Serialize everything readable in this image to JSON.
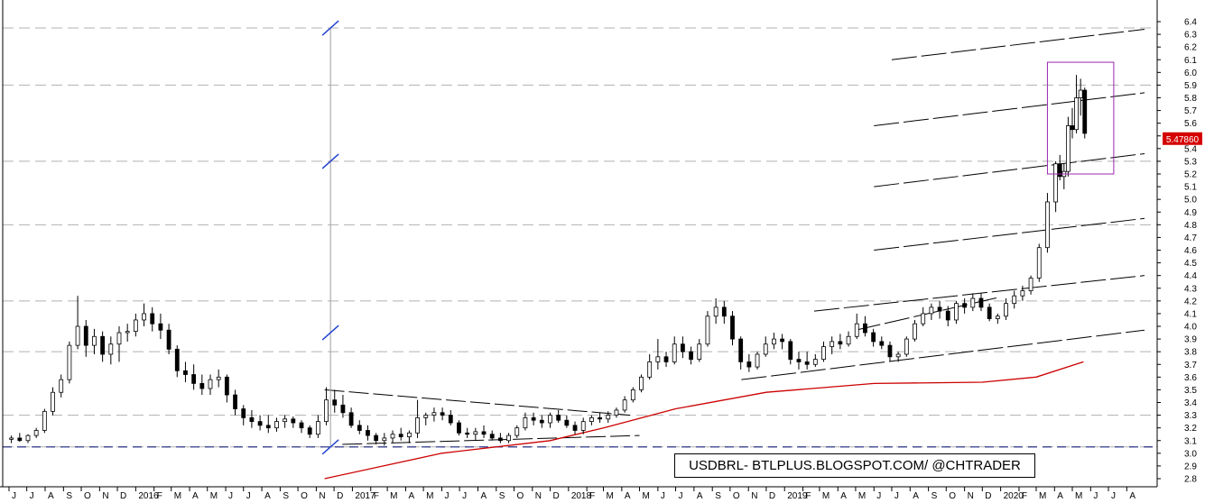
{
  "chart_data": {
    "type": "candlestick",
    "symbol": "USDBRL",
    "watermark": "USDBRL- BTLPLUS.BLOGSPOT.COM/ @CHTRADER",
    "last_price_label": "5.47860",
    "ylim": [
      2.8,
      6.4
    ],
    "y_ticks": [
      "2.8",
      "2.9",
      "3.0",
      "3.1",
      "3.2",
      "3.3",
      "3.4",
      "3.5",
      "3.6",
      "3.7",
      "3.8",
      "3.9",
      "4.0",
      "4.1",
      "4.2",
      "4.3",
      "4.4",
      "4.5",
      "4.6",
      "4.7",
      "4.8",
      "4.9",
      "5.0",
      "5.1",
      "5.2",
      "5.3",
      "5.4",
      "5.5",
      "5.6",
      "5.7",
      "5.8",
      "5.9",
      "6.0",
      "6.1",
      "6.2",
      "6.3",
      "6.4"
    ],
    "x_ticks": [
      "J",
      "J",
      "A",
      "S",
      "O",
      "N",
      "D",
      "2016",
      "F",
      "M",
      "A",
      "M",
      "J",
      "J",
      "A",
      "S",
      "O",
      "N",
      "D",
      "2017",
      "F",
      "M",
      "A",
      "M",
      "J",
      "J",
      "A",
      "S",
      "O",
      "N",
      "D",
      "2018",
      "F",
      "M",
      "A",
      "M",
      "J",
      "J",
      "A",
      "S",
      "O",
      "N",
      "D",
      "2019",
      "F",
      "M",
      "A",
      "M",
      "J",
      "J",
      "A",
      "S",
      "O",
      "N",
      "D",
      "2020",
      "F",
      "M",
      "A",
      "M",
      "J",
      "J",
      "A"
    ],
    "x_range": [
      "2015-06",
      "2020-08"
    ],
    "grid": "dashed horizontal",
    "horizontal_levels": [
      3.05,
      3.3,
      3.8,
      4.2,
      4.8,
      5.3,
      5.9,
      6.35
    ],
    "moving_average": {
      "color": "#cc0000",
      "points": [
        [
          "2016-11-15",
          2.8
        ],
        [
          "2017-06-01",
          3.0
        ],
        [
          "2017-12-01",
          3.1
        ],
        [
          "2018-03-01",
          3.2
        ],
        [
          "2018-07-01",
          3.35
        ],
        [
          "2018-12-01",
          3.48
        ],
        [
          "2019-06-01",
          3.55
        ],
        [
          "2019-12-01",
          3.56
        ],
        [
          "2020-03-01",
          3.6
        ],
        [
          "2020-05-20",
          3.72
        ]
      ]
    },
    "candles": [
      [
        "2015-06-05",
        3.11,
        3.14,
        3.08,
        3.12
      ],
      [
        "2015-06-19",
        3.12,
        3.16,
        3.09,
        3.1
      ],
      [
        "2015-07-03",
        3.1,
        3.15,
        3.08,
        3.14
      ],
      [
        "2015-07-17",
        3.14,
        3.2,
        3.12,
        3.18
      ],
      [
        "2015-07-31",
        3.18,
        3.35,
        3.16,
        3.33
      ],
      [
        "2015-08-14",
        3.33,
        3.52,
        3.3,
        3.48
      ],
      [
        "2015-08-28",
        3.48,
        3.62,
        3.44,
        3.58
      ],
      [
        "2015-09-11",
        3.58,
        3.88,
        3.55,
        3.85
      ],
      [
        "2015-09-25",
        3.85,
        4.24,
        3.82,
        4.0
      ],
      [
        "2015-10-09",
        4.0,
        4.05,
        3.76,
        3.85
      ],
      [
        "2015-10-23",
        3.85,
        3.98,
        3.78,
        3.92
      ],
      [
        "2015-11-06",
        3.92,
        3.96,
        3.72,
        3.78
      ],
      [
        "2015-11-20",
        3.78,
        3.92,
        3.7,
        3.86
      ],
      [
        "2015-12-04",
        3.86,
        4.0,
        3.72,
        3.95
      ],
      [
        "2015-12-18",
        3.95,
        4.02,
        3.88,
        3.96
      ],
      [
        "2016-01-01",
        3.96,
        4.1,
        3.92,
        4.05
      ],
      [
        "2016-01-15",
        4.05,
        4.18,
        4.0,
        4.1
      ],
      [
        "2016-01-29",
        4.1,
        4.15,
        3.96,
        4.02
      ],
      [
        "2016-02-12",
        4.02,
        4.1,
        3.9,
        3.97
      ],
      [
        "2016-02-26",
        3.97,
        4.02,
        3.78,
        3.82
      ],
      [
        "2016-03-11",
        3.82,
        3.85,
        3.6,
        3.65
      ],
      [
        "2016-03-25",
        3.65,
        3.72,
        3.56,
        3.62
      ],
      [
        "2016-04-08",
        3.62,
        3.7,
        3.5,
        3.55
      ],
      [
        "2016-04-22",
        3.55,
        3.62,
        3.46,
        3.51
      ],
      [
        "2016-05-06",
        3.51,
        3.62,
        3.46,
        3.58
      ],
      [
        "2016-05-20",
        3.58,
        3.66,
        3.52,
        3.6
      ],
      [
        "2016-06-03",
        3.6,
        3.62,
        3.4,
        3.46
      ],
      [
        "2016-06-17",
        3.46,
        3.5,
        3.3,
        3.35
      ],
      [
        "2016-07-01",
        3.35,
        3.38,
        3.22,
        3.28
      ],
      [
        "2016-07-15",
        3.28,
        3.34,
        3.2,
        3.25
      ],
      [
        "2016-07-29",
        3.25,
        3.3,
        3.18,
        3.22
      ],
      [
        "2016-08-12",
        3.22,
        3.3,
        3.16,
        3.2
      ],
      [
        "2016-08-26",
        3.2,
        3.28,
        3.17,
        3.25
      ],
      [
        "2016-09-09",
        3.25,
        3.3,
        3.2,
        3.27
      ],
      [
        "2016-09-23",
        3.27,
        3.29,
        3.2,
        3.24
      ],
      [
        "2016-10-07",
        3.24,
        3.26,
        3.16,
        3.2
      ],
      [
        "2016-10-21",
        3.2,
        3.22,
        3.12,
        3.15
      ],
      [
        "2016-11-04",
        3.15,
        3.3,
        3.12,
        3.25
      ],
      [
        "2016-11-18",
        3.25,
        3.52,
        3.22,
        3.42
      ],
      [
        "2016-12-02",
        3.42,
        3.5,
        3.32,
        3.38
      ],
      [
        "2016-12-16",
        3.38,
        3.46,
        3.28,
        3.32
      ],
      [
        "2016-12-30",
        3.32,
        3.36,
        3.2,
        3.22
      ],
      [
        "2017-01-13",
        3.22,
        3.26,
        3.15,
        3.18
      ],
      [
        "2017-01-27",
        3.18,
        3.22,
        3.1,
        3.14
      ],
      [
        "2017-02-10",
        3.14,
        3.16,
        3.07,
        3.1
      ],
      [
        "2017-02-24",
        3.1,
        3.16,
        3.06,
        3.12
      ],
      [
        "2017-03-10",
        3.12,
        3.18,
        3.08,
        3.15
      ],
      [
        "2017-03-24",
        3.15,
        3.2,
        3.1,
        3.13
      ],
      [
        "2017-04-07",
        3.13,
        3.18,
        3.08,
        3.16
      ],
      [
        "2017-04-21",
        3.16,
        3.42,
        3.12,
        3.28
      ],
      [
        "2017-05-05",
        3.28,
        3.32,
        3.22,
        3.3
      ],
      [
        "2017-05-19",
        3.3,
        3.36,
        3.25,
        3.32
      ],
      [
        "2017-06-02",
        3.32,
        3.36,
        3.26,
        3.3
      ],
      [
        "2017-06-16",
        3.3,
        3.34,
        3.22,
        3.24
      ],
      [
        "2017-06-30",
        3.24,
        3.26,
        3.14,
        3.16
      ],
      [
        "2017-07-14",
        3.16,
        3.2,
        3.12,
        3.15
      ],
      [
        "2017-07-28",
        3.15,
        3.2,
        3.1,
        3.17
      ],
      [
        "2017-08-11",
        3.17,
        3.22,
        3.12,
        3.15
      ],
      [
        "2017-08-25",
        3.15,
        3.18,
        3.1,
        3.12
      ],
      [
        "2017-09-08",
        3.12,
        3.16,
        3.08,
        3.1
      ],
      [
        "2017-09-22",
        3.1,
        3.16,
        3.08,
        3.14
      ],
      [
        "2017-10-06",
        3.14,
        3.22,
        3.12,
        3.2
      ],
      [
        "2017-10-20",
        3.2,
        3.32,
        3.18,
        3.28
      ],
      [
        "2017-11-03",
        3.28,
        3.32,
        3.22,
        3.26
      ],
      [
        "2017-11-17",
        3.26,
        3.3,
        3.2,
        3.24
      ],
      [
        "2017-12-01",
        3.24,
        3.32,
        3.2,
        3.3
      ],
      [
        "2017-12-15",
        3.3,
        3.34,
        3.24,
        3.26
      ],
      [
        "2017-12-29",
        3.26,
        3.3,
        3.2,
        3.22
      ],
      [
        "2018-01-12",
        3.22,
        3.25,
        3.15,
        3.18
      ],
      [
        "2018-01-26",
        3.18,
        3.28,
        3.15,
        3.25
      ],
      [
        "2018-02-09",
        3.25,
        3.3,
        3.22,
        3.28
      ],
      [
        "2018-02-23",
        3.28,
        3.32,
        3.24,
        3.27
      ],
      [
        "2018-03-09",
        3.27,
        3.33,
        3.24,
        3.3
      ],
      [
        "2018-03-23",
        3.3,
        3.36,
        3.28,
        3.34
      ],
      [
        "2018-04-06",
        3.34,
        3.45,
        3.32,
        3.42
      ],
      [
        "2018-04-20",
        3.42,
        3.52,
        3.4,
        3.5
      ],
      [
        "2018-05-04",
        3.5,
        3.62,
        3.48,
        3.6
      ],
      [
        "2018-05-18",
        3.6,
        3.78,
        3.58,
        3.72
      ],
      [
        "2018-06-01",
        3.72,
        3.9,
        3.66,
        3.76
      ],
      [
        "2018-06-15",
        3.76,
        3.8,
        3.68,
        3.72
      ],
      [
        "2018-06-29",
        3.72,
        3.92,
        3.7,
        3.86
      ],
      [
        "2018-07-13",
        3.86,
        3.92,
        3.75,
        3.8
      ],
      [
        "2018-07-27",
        3.8,
        3.84,
        3.7,
        3.74
      ],
      [
        "2018-08-10",
        3.74,
        3.9,
        3.72,
        3.86
      ],
      [
        "2018-08-24",
        3.86,
        4.12,
        3.84,
        4.08
      ],
      [
        "2018-09-07",
        4.08,
        4.22,
        4.02,
        4.15
      ],
      [
        "2018-09-21",
        4.15,
        4.2,
        4.02,
        4.08
      ],
      [
        "2018-10-05",
        4.08,
        4.12,
        3.85,
        3.9
      ],
      [
        "2018-10-19",
        3.9,
        3.92,
        3.66,
        3.72
      ],
      [
        "2018-11-02",
        3.72,
        3.78,
        3.64,
        3.68
      ],
      [
        "2018-11-16",
        3.68,
        3.8,
        3.66,
        3.78
      ],
      [
        "2018-11-30",
        3.78,
        3.92,
        3.76,
        3.86
      ],
      [
        "2018-12-14",
        3.86,
        3.95,
        3.82,
        3.9
      ],
      [
        "2018-12-28",
        3.9,
        3.94,
        3.82,
        3.88
      ],
      [
        "2019-01-11",
        3.88,
        3.9,
        3.7,
        3.74
      ],
      [
        "2019-01-25",
        3.74,
        3.8,
        3.66,
        3.72
      ],
      [
        "2019-02-08",
        3.72,
        3.8,
        3.66,
        3.7
      ],
      [
        "2019-02-22",
        3.7,
        3.78,
        3.68,
        3.74
      ],
      [
        "2019-03-08",
        3.74,
        3.88,
        3.72,
        3.84
      ],
      [
        "2019-03-22",
        3.84,
        3.92,
        3.78,
        3.88
      ],
      [
        "2019-04-05",
        3.88,
        3.94,
        3.82,
        3.86
      ],
      [
        "2019-04-19",
        3.86,
        3.96,
        3.84,
        3.92
      ],
      [
        "2019-05-03",
        3.92,
        4.1,
        3.9,
        4.02
      ],
      [
        "2019-05-17",
        4.02,
        4.08,
        3.92,
        3.95
      ],
      [
        "2019-05-31",
        3.95,
        3.98,
        3.84,
        3.88
      ],
      [
        "2019-06-14",
        3.88,
        3.92,
        3.82,
        3.85
      ],
      [
        "2019-06-28",
        3.85,
        3.88,
        3.72,
        3.76
      ],
      [
        "2019-07-12",
        3.76,
        3.8,
        3.72,
        3.78
      ],
      [
        "2019-07-26",
        3.78,
        3.92,
        3.76,
        3.9
      ],
      [
        "2019-08-09",
        3.9,
        4.05,
        3.88,
        4.02
      ],
      [
        "2019-08-23",
        4.02,
        4.15,
        4.0,
        4.1
      ],
      [
        "2019-09-06",
        4.1,
        4.18,
        4.05,
        4.15
      ],
      [
        "2019-09-20",
        4.15,
        4.2,
        4.06,
        4.12
      ],
      [
        "2019-10-04",
        4.12,
        4.16,
        4.0,
        4.05
      ],
      [
        "2019-10-18",
        4.05,
        4.2,
        4.02,
        4.18
      ],
      [
        "2019-11-01",
        4.18,
        4.22,
        4.1,
        4.15
      ],
      [
        "2019-11-15",
        4.15,
        4.26,
        4.12,
        4.22
      ],
      [
        "2019-11-29",
        4.22,
        4.26,
        4.12,
        4.15
      ],
      [
        "2019-12-13",
        4.15,
        4.18,
        4.04,
        4.06
      ],
      [
        "2019-12-27",
        4.06,
        4.1,
        4.02,
        4.08
      ],
      [
        "2020-01-10",
        4.08,
        4.22,
        4.05,
        4.18
      ],
      [
        "2020-01-24",
        4.18,
        4.28,
        4.14,
        4.24
      ],
      [
        "2020-02-07",
        4.24,
        4.32,
        4.2,
        4.28
      ],
      [
        "2020-02-21",
        4.28,
        4.4,
        4.25,
        4.38
      ],
      [
        "2020-03-06",
        4.38,
        4.65,
        4.35,
        4.62
      ],
      [
        "2020-03-20",
        4.62,
        5.05,
        4.58,
        4.98
      ],
      [
        "2020-04-03",
        4.98,
        5.3,
        4.9,
        5.28
      ],
      [
        "2020-04-10",
        5.28,
        5.35,
        5.15,
        5.18
      ],
      [
        "2020-04-17",
        5.18,
        5.28,
        5.08,
        5.22
      ],
      [
        "2020-04-24",
        5.22,
        5.65,
        5.18,
        5.58
      ],
      [
        "2020-05-01",
        5.58,
        5.72,
        5.48,
        5.55
      ],
      [
        "2020-05-08",
        5.55,
        5.98,
        5.52,
        5.8
      ],
      [
        "2020-05-15",
        5.8,
        5.95,
        5.66,
        5.86
      ],
      [
        "2020-05-22",
        5.86,
        5.88,
        5.48,
        5.52
      ]
    ],
    "channel_lines": [
      [
        [
          "2018-10-20",
          3.58
        ],
        [
          "2020-08-31",
          3.97
        ]
      ],
      [
        [
          "2019-02-20",
          4.12
        ],
        [
          "2020-08-31",
          4.4
        ]
      ],
      [
        [
          "2019-05-01",
          3.97
        ],
        [
          "2019-12-31",
          4.23
        ]
      ],
      [
        [
          "2019-06-01",
          4.6
        ],
        [
          "2020-08-31",
          4.85
        ]
      ],
      [
        [
          "2019-06-01",
          5.1
        ],
        [
          "2020-08-31",
          5.36
        ]
      ],
      [
        [
          "2019-06-01",
          5.58
        ],
        [
          "2020-08-31",
          5.84
        ]
      ],
      [
        [
          "2019-07-01",
          6.1
        ],
        [
          "2020-08-31",
          6.34
        ]
      ]
    ],
    "triangle_lines": [
      [
        [
          "2016-11-15",
          3.5
        ],
        [
          "2018-04-15",
          3.3
        ]
      ],
      [
        [
          "2016-12-15",
          3.07
        ],
        [
          "2018-05-01",
          3.14
        ]
      ]
    ],
    "highlight_box": [
      [
        "2020-03-20",
        5.2
      ],
      [
        "2020-07-10",
        6.08
      ]
    ],
    "markers": {
      "vertical_date": "2016-11-25",
      "tick_levels": [
        3.05,
        3.95,
        5.3,
        6.35
      ]
    }
  }
}
